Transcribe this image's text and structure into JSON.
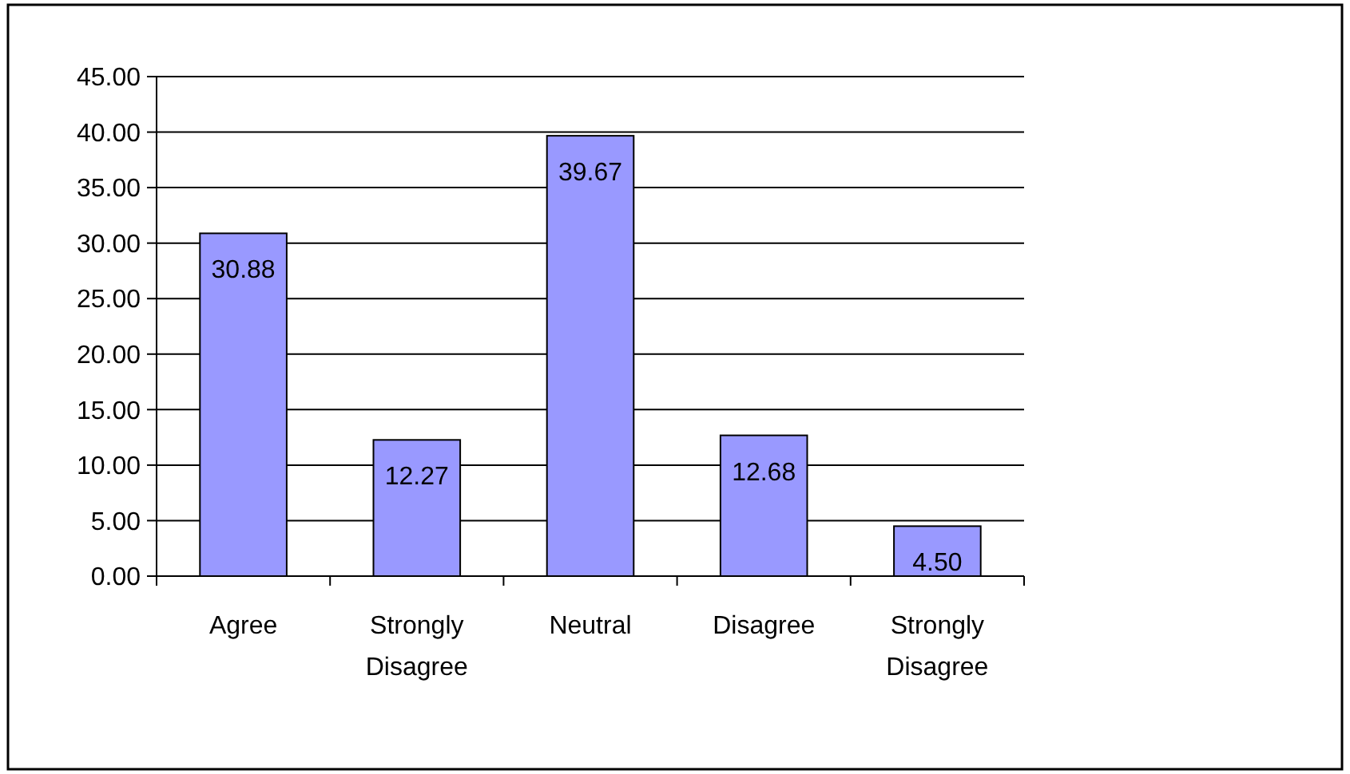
{
  "chart_data": {
    "type": "bar",
    "categories": [
      "Agree",
      "Strongly Disagree",
      "Neutral",
      "Disagree",
      "Strongly Disagree"
    ],
    "values": [
      30.88,
      12.27,
      39.67,
      12.68,
      4.5
    ],
    "value_labels": [
      "30.88",
      "12.27",
      "39.67",
      "12.68",
      "4.50"
    ],
    "color": "#9999ff",
    "ylim": [
      0,
      45
    ],
    "yticks": [
      {
        "value": 0,
        "label": "0.00"
      },
      {
        "value": 5,
        "label": "5.00"
      },
      {
        "value": 10,
        "label": "10.00"
      },
      {
        "value": 15,
        "label": "15.00"
      },
      {
        "value": 20,
        "label": "20.00"
      },
      {
        "value": 25,
        "label": "25.00"
      },
      {
        "value": 30,
        "label": "30.00"
      },
      {
        "value": 35,
        "label": "35.00"
      },
      {
        "value": 40,
        "label": "40.00"
      },
      {
        "value": 45,
        "label": "45.00"
      }
    ],
    "grid": "y"
  }
}
